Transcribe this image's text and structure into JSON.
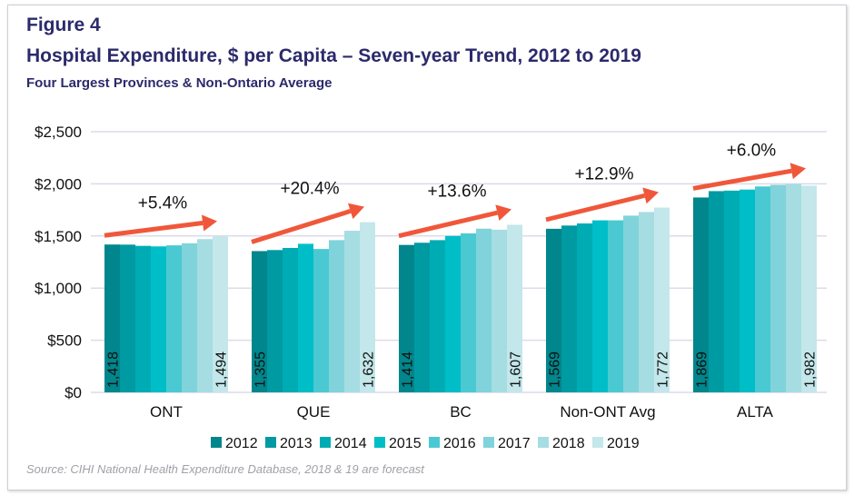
{
  "figure_label": "Figure 4",
  "source": "Source: CIHI National Health Expenditure Database, 2018 & 19 are forecast",
  "chart_data": {
    "type": "bar",
    "title": "Hospital Expenditure, $ per Capita – Seven-year Trend, 2012 to 2019",
    "subtitle": "Four Largest Provinces & Non-Ontario Average",
    "categories": [
      "ONT",
      "QUE",
      "BC",
      "Non-ONT Avg",
      "ALTA"
    ],
    "series": [
      {
        "name": "2012",
        "color": "#00868c",
        "values": [
          1418,
          1355,
          1414,
          1569,
          1869
        ]
      },
      {
        "name": "2013",
        "color": "#009aa2",
        "values": [
          1417,
          1365,
          1435,
          1600,
          1930
        ]
      },
      {
        "name": "2014",
        "color": "#00acb4",
        "values": [
          1405,
          1385,
          1460,
          1620,
          1935
        ]
      },
      {
        "name": "2015",
        "color": "#00bec7",
        "values": [
          1400,
          1425,
          1500,
          1650,
          1945
        ]
      },
      {
        "name": "2016",
        "color": "#4ac9d2",
        "values": [
          1410,
          1375,
          1525,
          1650,
          1975
        ]
      },
      {
        "name": "2017",
        "color": "#80d3db",
        "values": [
          1430,
          1460,
          1570,
          1695,
          1990
        ]
      },
      {
        "name": "2018",
        "color": "#a6dde2",
        "values": [
          1470,
          1550,
          1560,
          1730,
          2000
        ]
      },
      {
        "name": "2019",
        "color": "#c3e7ea",
        "values": [
          1494,
          1632,
          1607,
          1772,
          1982
        ]
      }
    ],
    "data_labels": [
      [
        "1,418",
        "1,494"
      ],
      [
        "1,355",
        "1,632"
      ],
      [
        "1,414",
        "1,607"
      ],
      [
        "1,569",
        "1,772"
      ],
      [
        "1,869",
        "1,982"
      ]
    ],
    "annotations": [
      "+5.4%",
      "+20.4%",
      "+13.6%",
      "+12.9%",
      "+6.0%"
    ],
    "arrow_color": "#f0573a",
    "ylim": [
      0,
      2500
    ],
    "yticks": [
      0,
      500,
      1000,
      1500,
      2000,
      2500
    ],
    "ytick_labels": [
      "$0",
      "$500",
      "$1,000",
      "$1,500",
      "$2,000",
      "$2,500"
    ],
    "grid": true,
    "legend_position": "bottom"
  }
}
